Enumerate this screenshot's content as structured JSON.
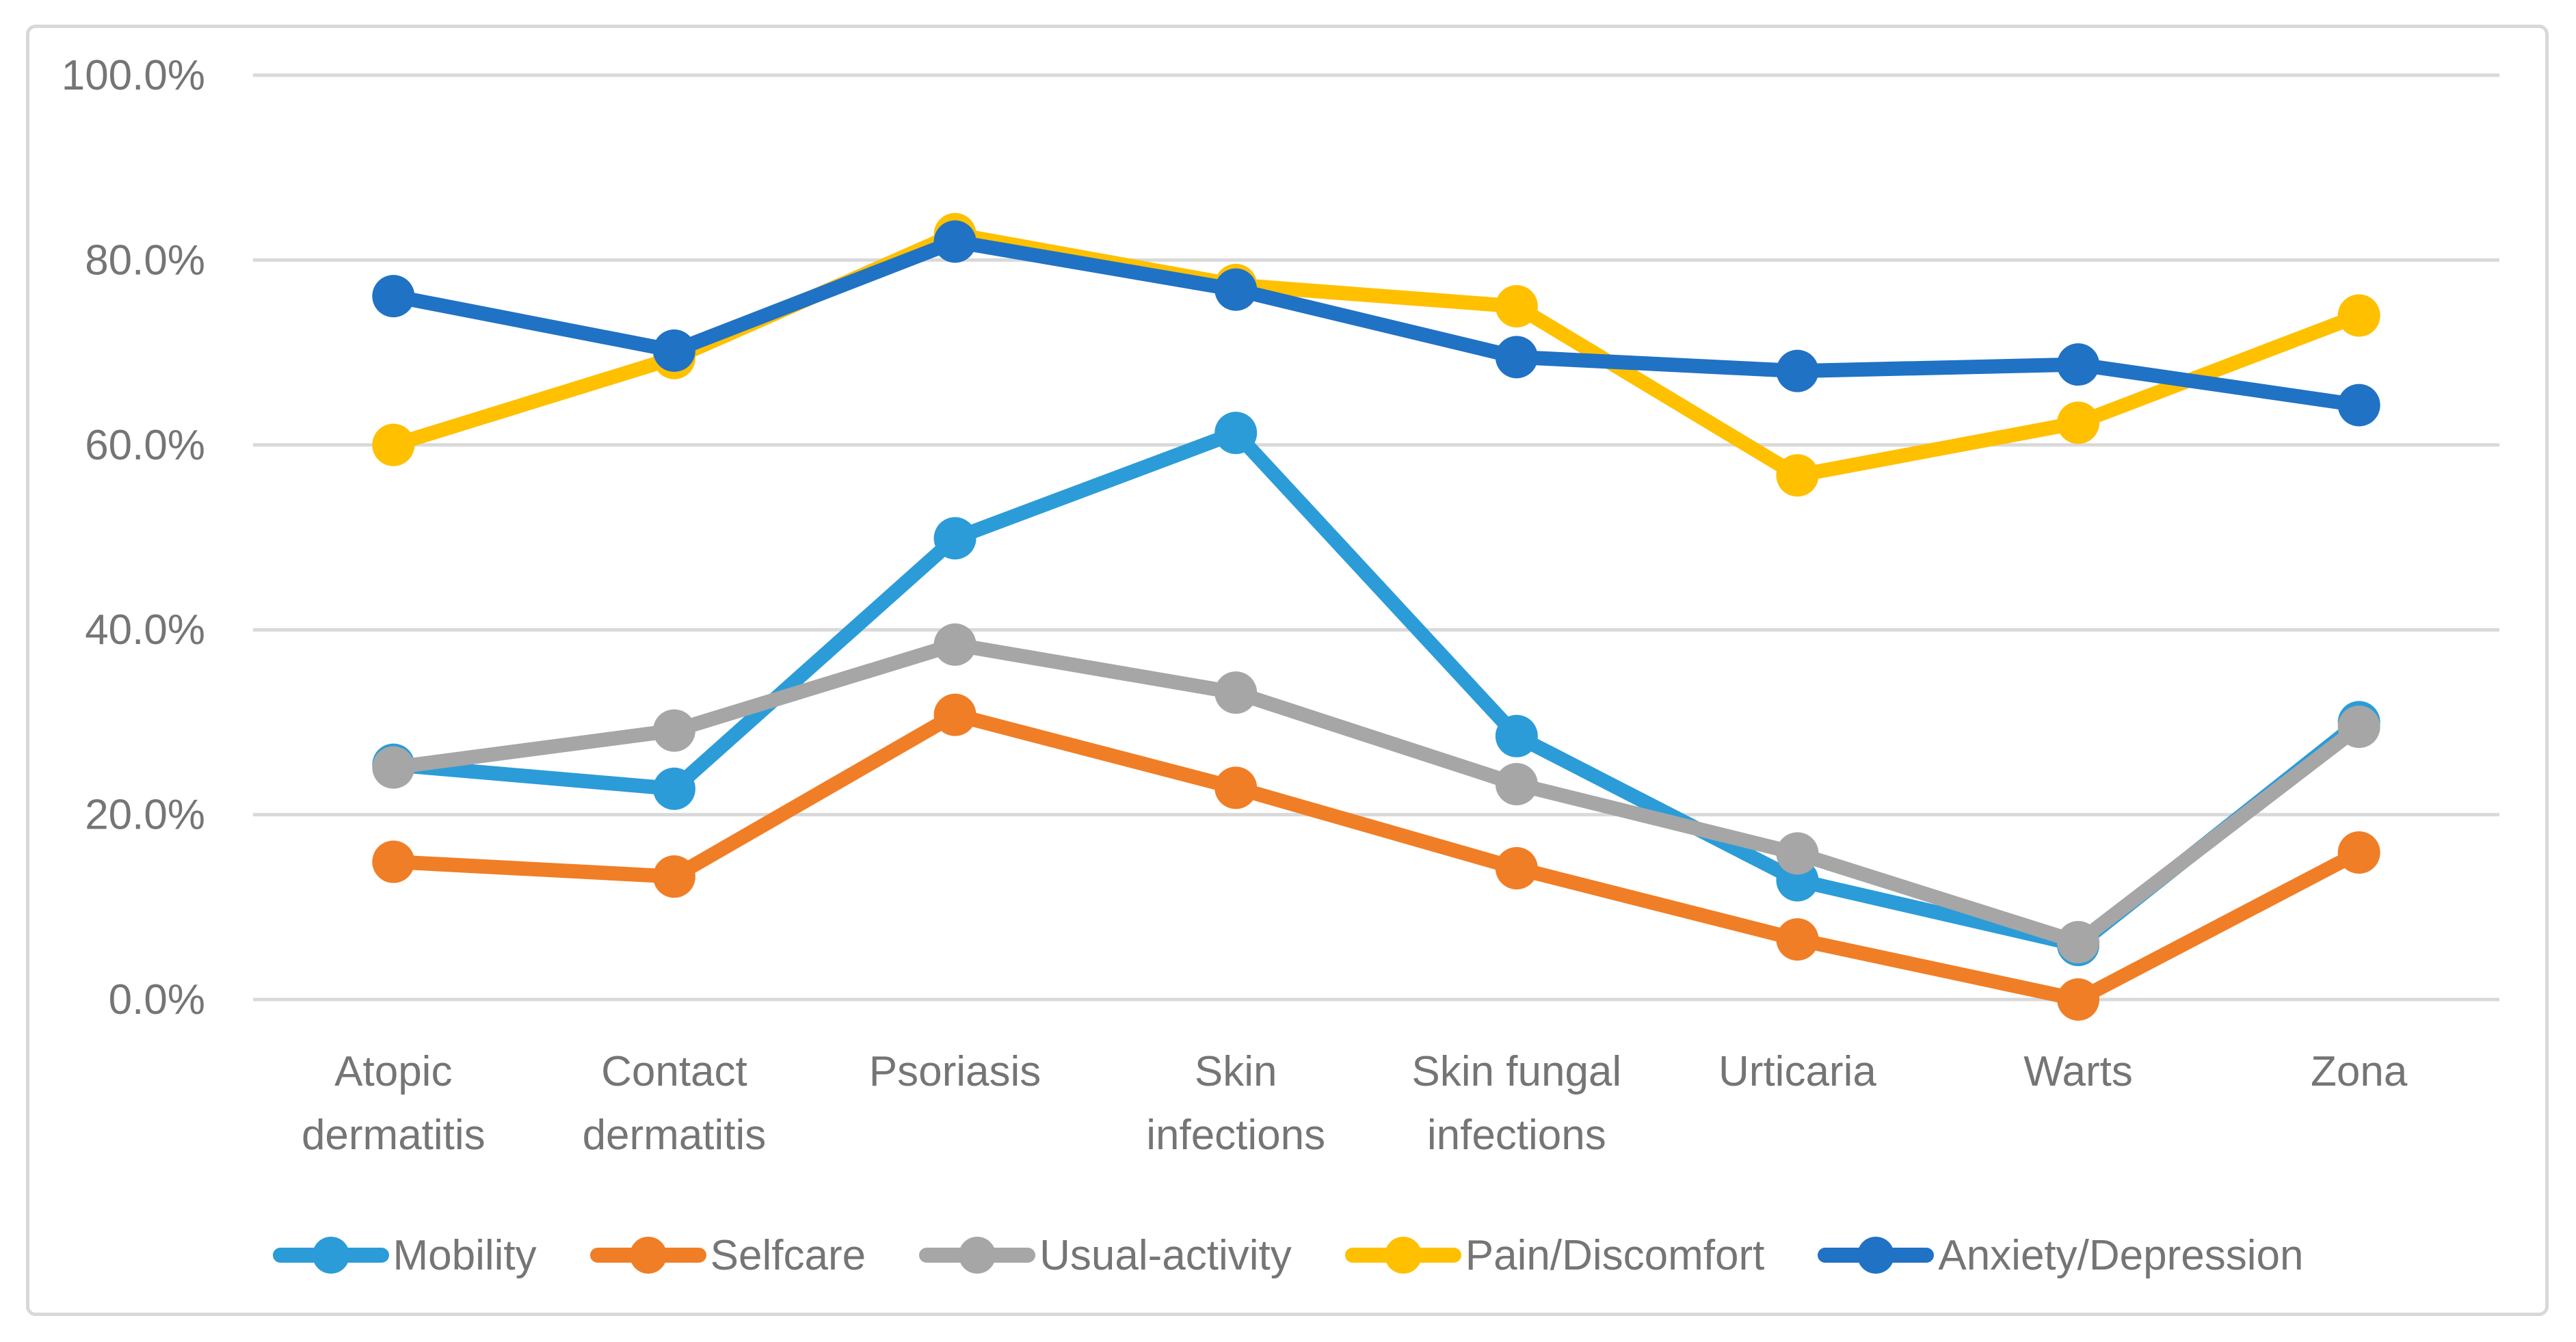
{
  "chart_data": {
    "type": "line",
    "title": "",
    "xlabel": "",
    "ylabel": "",
    "ylim": [
      0,
      100
    ],
    "grid": true,
    "legend_position": "bottom",
    "y_ticks": [
      {
        "value": 0,
        "label": "0.0%"
      },
      {
        "value": 20,
        "label": "20.0%"
      },
      {
        "value": 40,
        "label": "40.0%"
      },
      {
        "value": 60,
        "label": "60.0%"
      },
      {
        "value": 80,
        "label": "80.0%"
      },
      {
        "value": 100,
        "label": "100.0%"
      }
    ],
    "categories": [
      "Atopic dermatitis",
      "Contact dermatitis",
      "Psoriasis",
      "Skin infections",
      "Skin fungal infections",
      "Urticaria",
      "Warts",
      "Zona"
    ],
    "category_label_lines": [
      [
        "Atopic",
        "dermatitis"
      ],
      [
        "Contact",
        "dermatitis"
      ],
      [
        "Psoriasis"
      ],
      [
        "Skin",
        "infections"
      ],
      [
        "Skin fungal",
        "infections"
      ],
      [
        "Urticaria"
      ],
      [
        "Warts"
      ],
      [
        "Zona"
      ]
    ],
    "series": [
      {
        "name": "Mobility",
        "color": "#2B9CD8",
        "values": [
          25.4,
          22.8,
          49.9,
          61.3,
          28.5,
          12.9,
          5.9,
          30.0
        ]
      },
      {
        "name": "Selfcare",
        "color": "#F07E26",
        "values": [
          14.9,
          13.3,
          30.8,
          22.9,
          14.2,
          6.5,
          0.0,
          15.9
        ]
      },
      {
        "name": "Usual-activity",
        "color": "#A6A6A6",
        "values": [
          25.1,
          29.1,
          38.4,
          33.2,
          23.3,
          15.8,
          6.2,
          29.5
        ]
      },
      {
        "name": "Pain/Discomfort",
        "color": "#FFC000",
        "values": [
          60.0,
          69.4,
          82.8,
          77.3,
          75.0,
          56.7,
          62.4,
          74.0
        ]
      },
      {
        "name": "Anxiety/Depression",
        "color": "#2072C4",
        "values": [
          76.1,
          70.2,
          82.0,
          76.8,
          69.5,
          68.0,
          68.7,
          64.3
        ]
      }
    ]
  }
}
